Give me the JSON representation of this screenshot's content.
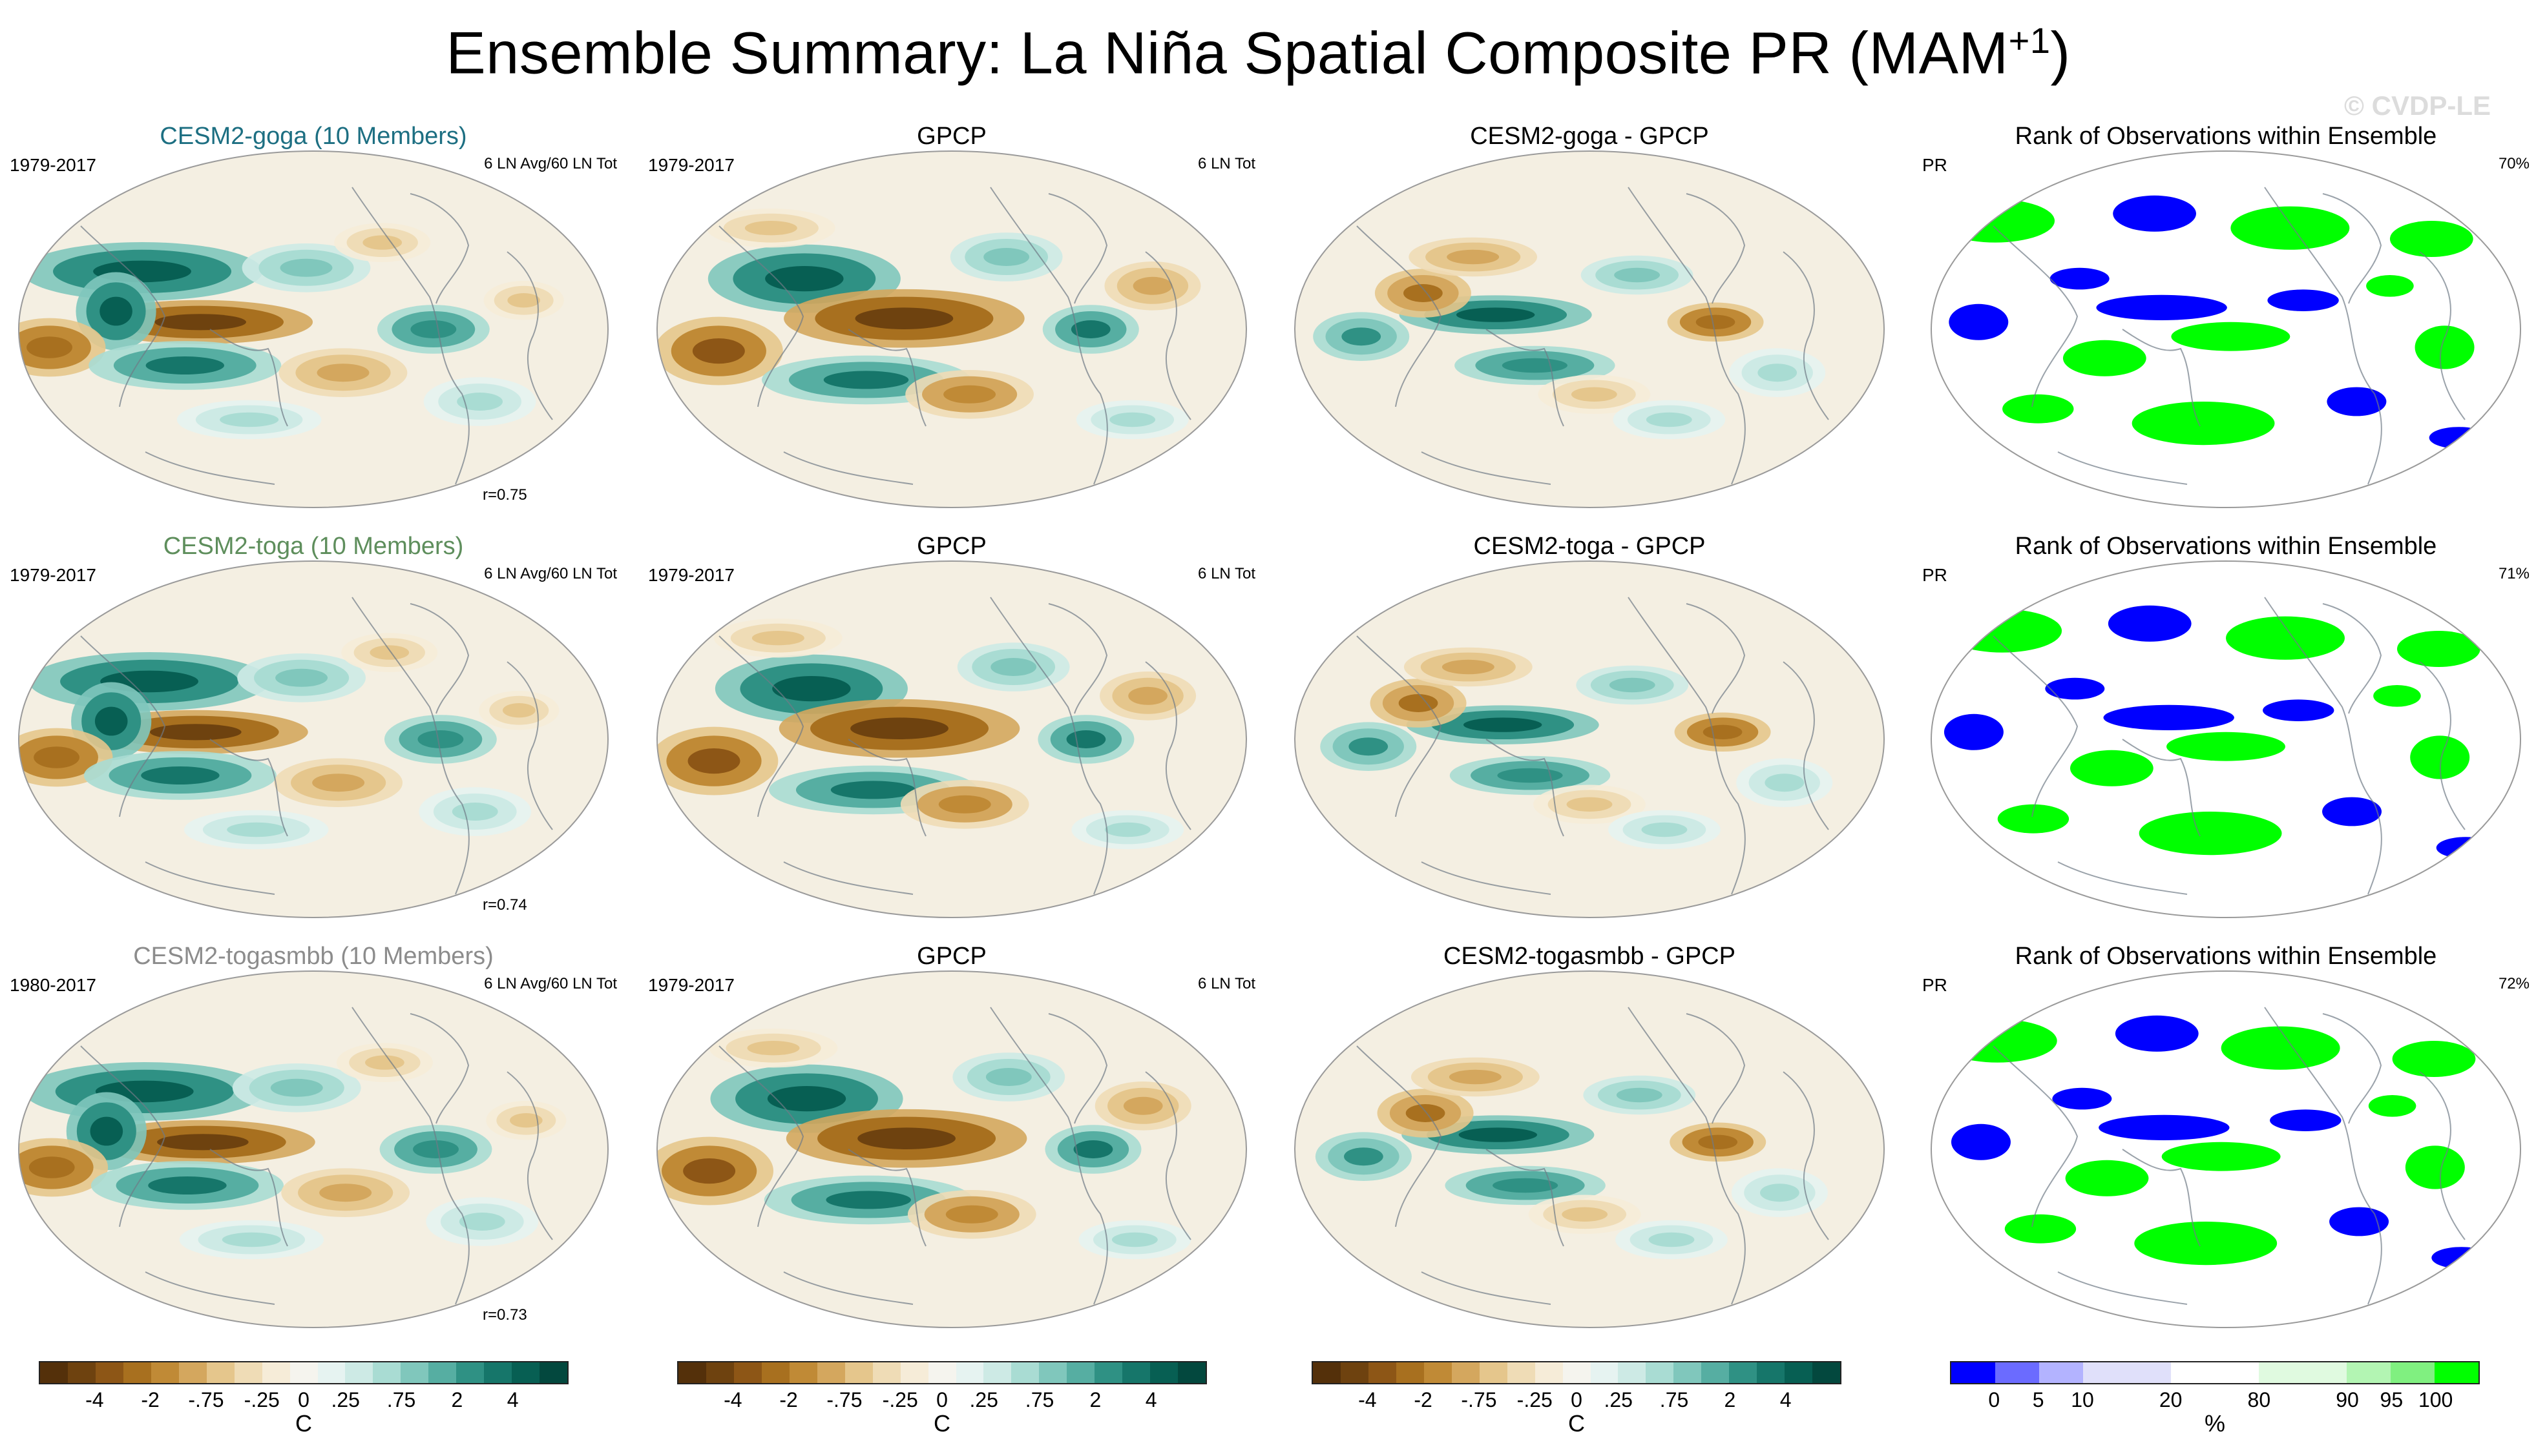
{
  "title": {
    "main": "Ensemble Summary: La Niña Spatial Composite PR (MAM",
    "sup": "+1",
    "close": ")"
  },
  "watermark": "© CVDP-LE",
  "rows": [
    {
      "model": {
        "title": "CESM2-goga (10 Members)",
        "color": "#1d6f82",
        "left": "1979-2017",
        "right": "6 LN Avg/60 LN Tot",
        "corr": "r=0.75"
      },
      "obs": {
        "title": "GPCP",
        "left": "1979-2017",
        "right": "6 LN Tot"
      },
      "diff": {
        "title": "CESM2-goga - GPCP"
      },
      "rank": {
        "title": "Rank of Observations within Ensemble",
        "left": "PR",
        "right": "70%"
      }
    },
    {
      "model": {
        "title": "CESM2-toga (10 Members)",
        "color": "#5e8e5c",
        "left": "1979-2017",
        "right": "6 LN Avg/60 LN Tot",
        "corr": "r=0.74"
      },
      "obs": {
        "title": "GPCP",
        "left": "1979-2017",
        "right": "6 LN Tot"
      },
      "diff": {
        "title": "CESM2-toga - GPCP"
      },
      "rank": {
        "title": "Rank of Observations within Ensemble",
        "left": "PR",
        "right": "71%"
      }
    },
    {
      "model": {
        "title": "CESM2-togasmbb (10 Members)",
        "color": "#8c8c8c",
        "left": "1980-2017",
        "right": "6 LN Avg/60 LN Tot",
        "corr": "r=0.73"
      },
      "obs": {
        "title": "GPCP",
        "left": "1979-2017",
        "right": "6 LN Tot"
      },
      "diff": {
        "title": "CESM2-togasmbb - GPCP"
      },
      "rank": {
        "title": "Rank of Observations within Ensemble",
        "left": "PR",
        "right": "72%"
      }
    }
  ],
  "colorbars": {
    "pr": {
      "colors": [
        "#54300a",
        "#6e420f",
        "#8d5616",
        "#a8701f",
        "#c08a36",
        "#d4a75e",
        "#e5c68c",
        "#efdcb6",
        "#f6ecd8",
        "#f5f4ee",
        "#e6f3f1",
        "#cdeae5",
        "#a9dcd3",
        "#80c7bc",
        "#56aea2",
        "#2f9184",
        "#16766a",
        "#075f53",
        "#03483e"
      ],
      "ticks": [
        "-4",
        "-2",
        "-.75",
        "-.25",
        "0",
        ".25",
        ".75",
        "2",
        "4"
      ],
      "unit": "C"
    },
    "rank": {
      "colors": [
        "#0000ff",
        "#6b6bff",
        "#b3b3ff",
        "#e0e0fa",
        "#e0e0fa",
        "#ffffff",
        "#ffffff",
        "#e0fae0",
        "#e0fae0",
        "#b3f5b3",
        "#80f080",
        "#00ff00"
      ],
      "ticks": [
        "0",
        "5",
        "10",
        "20",
        "80",
        "90",
        "95",
        "100"
      ],
      "unit": "%"
    }
  }
}
